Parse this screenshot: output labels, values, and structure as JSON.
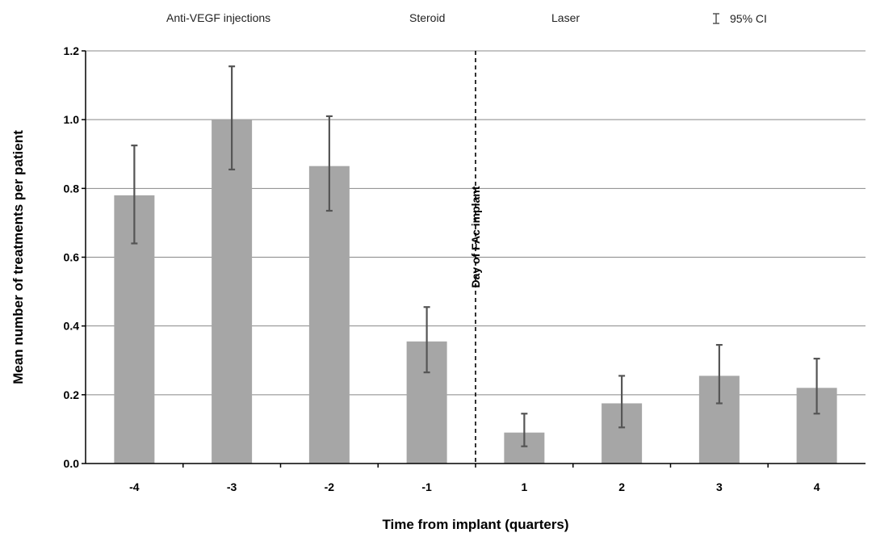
{
  "chart_data": {
    "type": "bar",
    "title": "",
    "xlabel": "Time from implant (quarters)",
    "ylabel": "Mean number of treatments per patient",
    "ylim": [
      0,
      1.2
    ],
    "yticks": [
      "0.0",
      "0.2",
      "0.4",
      "0.6",
      "0.8",
      "1.0",
      "1.2"
    ],
    "categories": [
      "-4",
      "-3",
      "-2",
      "-1",
      "1",
      "2",
      "3",
      "4"
    ],
    "series": [
      {
        "name": "Anti-VEGF injections",
        "values": [
          0.78,
          1.0,
          0.865,
          0.355,
          0.09,
          0.175,
          0.255,
          0.22
        ],
        "ci_low": [
          0.64,
          0.855,
          0.735,
          0.265,
          0.05,
          0.105,
          0.175,
          0.145
        ],
        "ci_high": [
          0.925,
          1.155,
          1.01,
          0.455,
          0.145,
          0.255,
          0.345,
          0.305
        ]
      }
    ],
    "legend": [
      "Anti-VEGF injections",
      "Steroid",
      "Laser",
      "95% CI"
    ],
    "legend_position": "top",
    "reference_line": {
      "after_category": "-1",
      "label": "Day of FAc implant"
    },
    "grid": true,
    "colors": {
      "bar": "#a6a6a6",
      "error_bar": "#555555",
      "grid": "#888888"
    }
  }
}
